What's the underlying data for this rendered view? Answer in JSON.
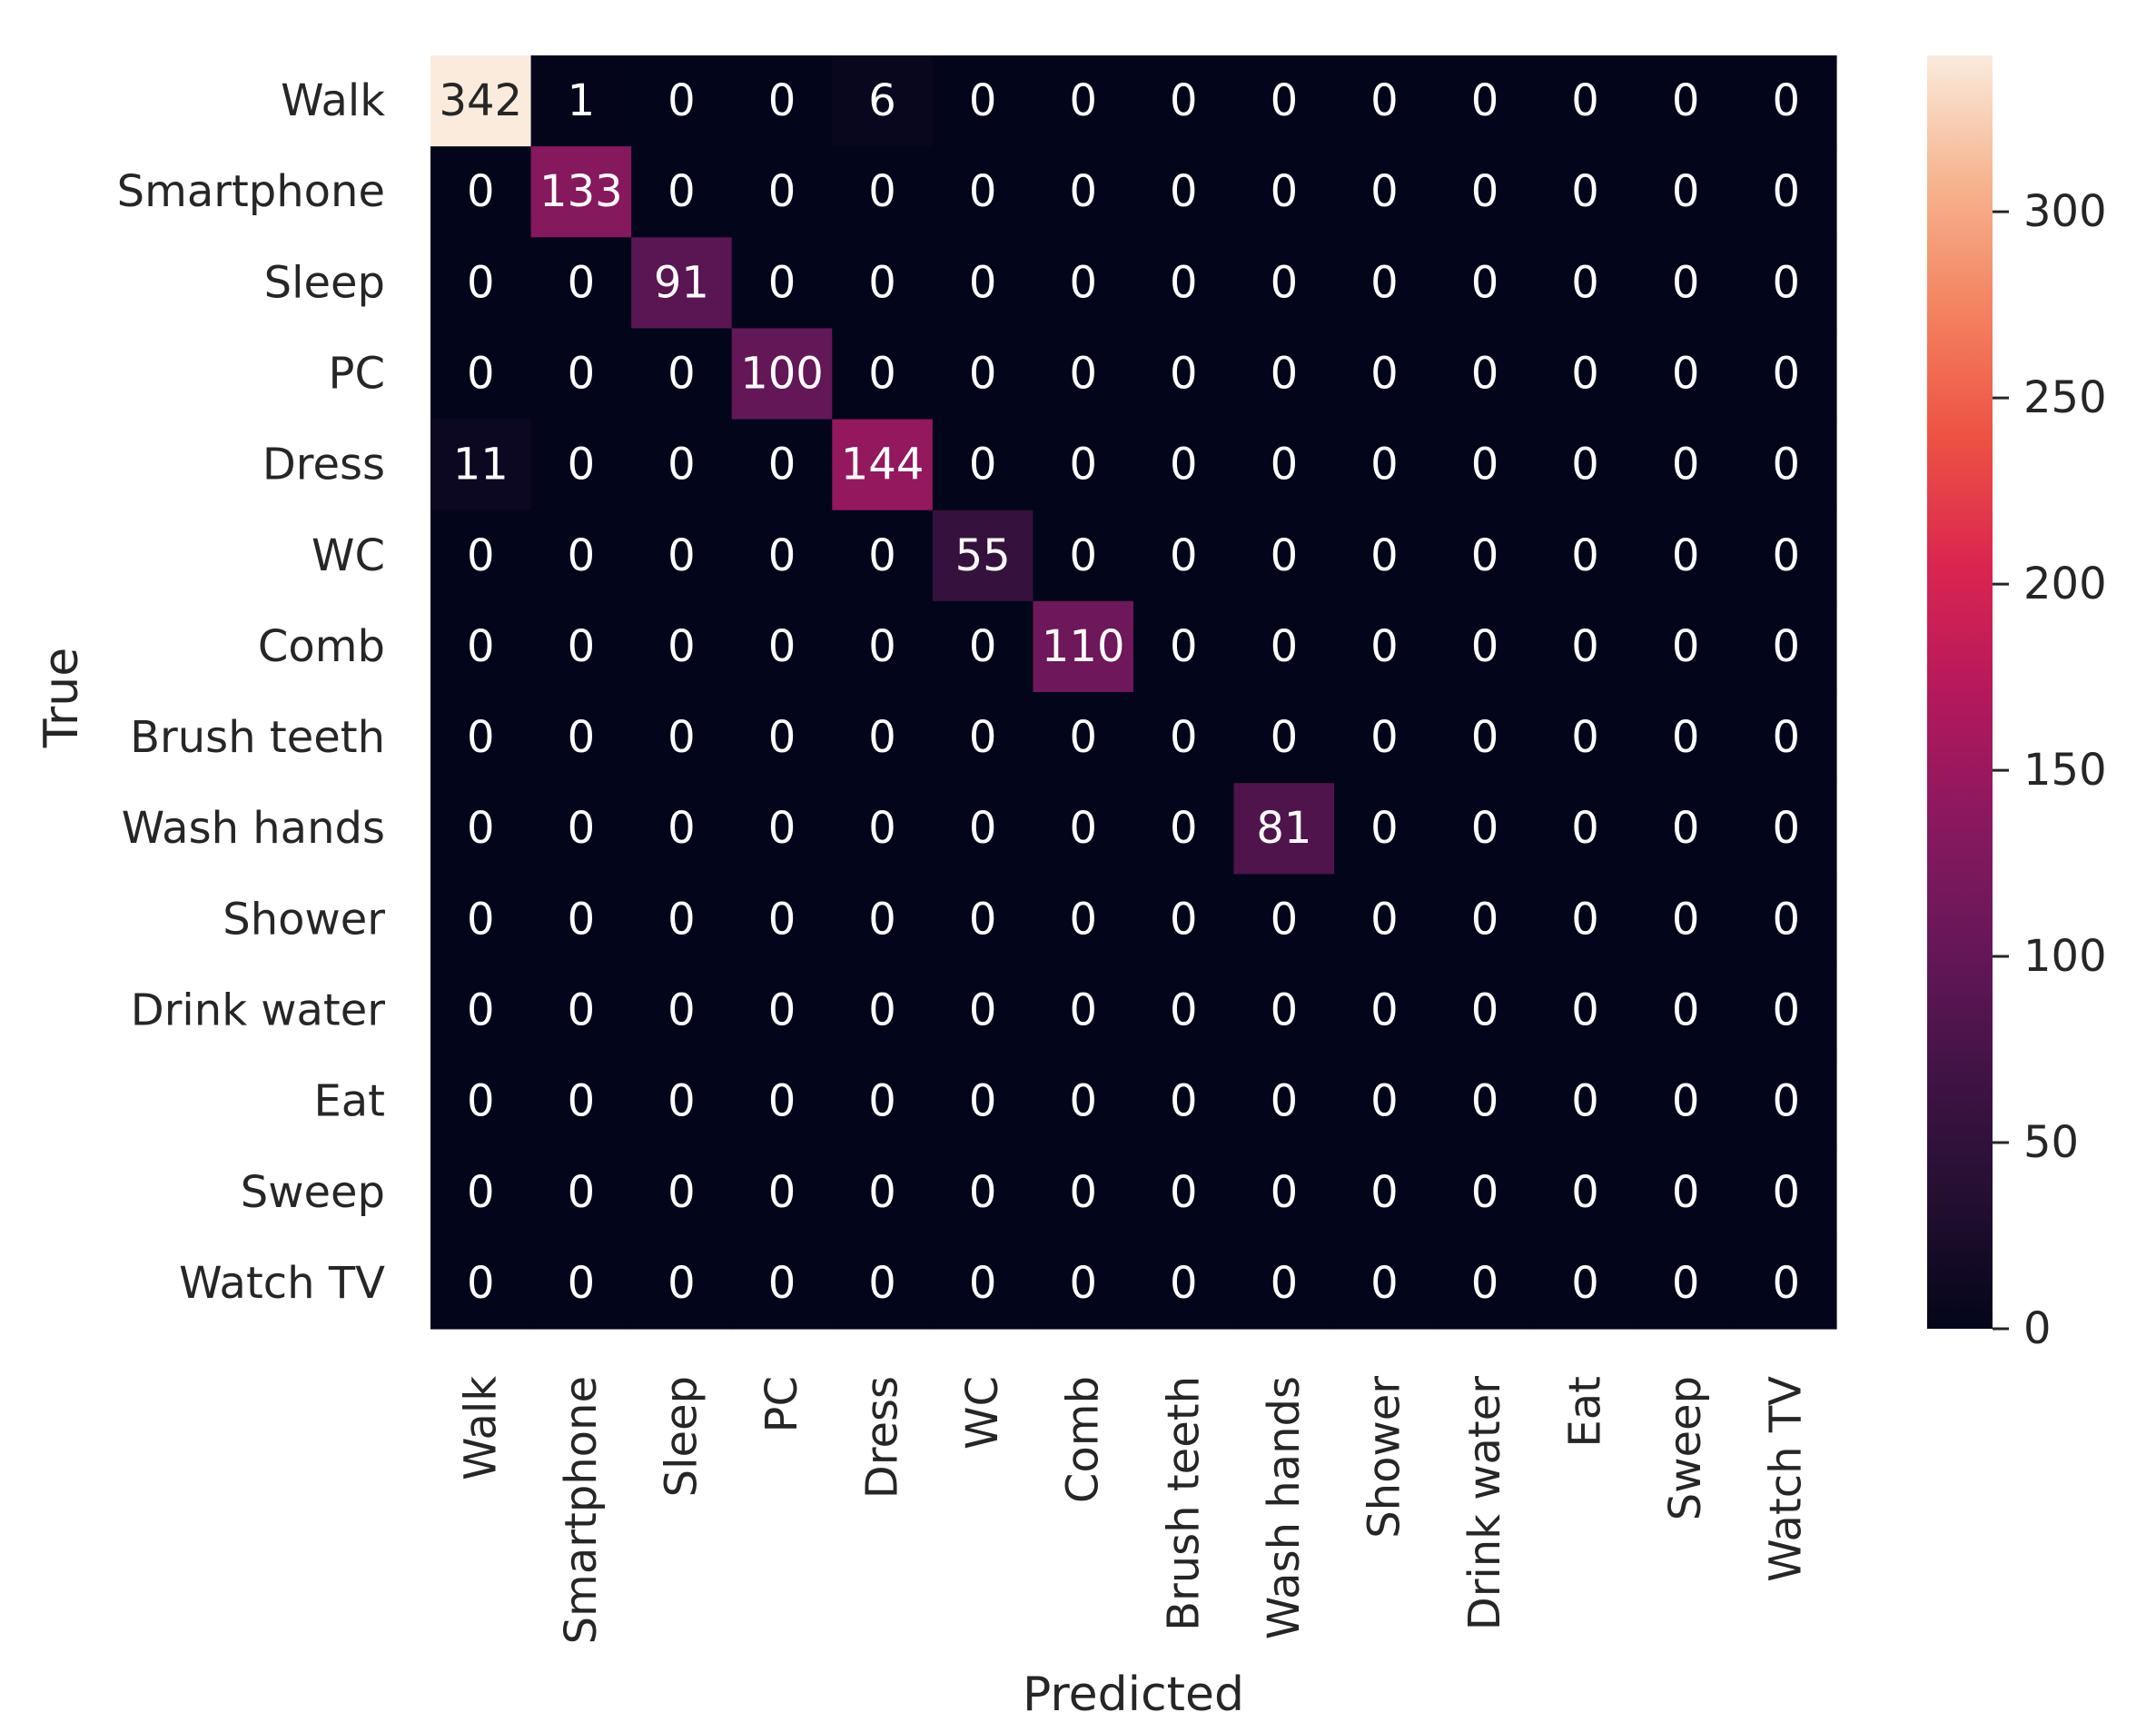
{
  "chart_data": {
    "type": "heatmap",
    "title": "",
    "xlabel": "Predicted",
    "ylabel": "True",
    "x_categories": [
      "Walk",
      "Smartphone",
      "Sleep",
      "PC",
      "Dress",
      "WC",
      "Comb",
      "Brush teeth",
      "Wash hands",
      "Shower",
      "Drink water",
      "Eat",
      "Sweep",
      "Watch TV"
    ],
    "y_categories": [
      "Walk",
      "Smartphone",
      "Sleep",
      "PC",
      "Dress",
      "WC",
      "Comb",
      "Brush teeth",
      "Wash hands",
      "Shower",
      "Drink water",
      "Eat",
      "Sweep",
      "Watch TV"
    ],
    "matrix": [
      [
        342,
        1,
        0,
        0,
        6,
        0,
        0,
        0,
        0,
        0,
        0,
        0,
        0,
        0
      ],
      [
        0,
        133,
        0,
        0,
        0,
        0,
        0,
        0,
        0,
        0,
        0,
        0,
        0,
        0
      ],
      [
        0,
        0,
        91,
        0,
        0,
        0,
        0,
        0,
        0,
        0,
        0,
        0,
        0,
        0
      ],
      [
        0,
        0,
        0,
        100,
        0,
        0,
        0,
        0,
        0,
        0,
        0,
        0,
        0,
        0
      ],
      [
        11,
        0,
        0,
        0,
        144,
        0,
        0,
        0,
        0,
        0,
        0,
        0,
        0,
        0
      ],
      [
        0,
        0,
        0,
        0,
        0,
        55,
        0,
        0,
        0,
        0,
        0,
        0,
        0,
        0
      ],
      [
        0,
        0,
        0,
        0,
        0,
        0,
        110,
        0,
        0,
        0,
        0,
        0,
        0,
        0
      ],
      [
        0,
        0,
        0,
        0,
        0,
        0,
        0,
        0,
        0,
        0,
        0,
        0,
        0,
        0
      ],
      [
        0,
        0,
        0,
        0,
        0,
        0,
        0,
        0,
        81,
        0,
        0,
        0,
        0,
        0
      ],
      [
        0,
        0,
        0,
        0,
        0,
        0,
        0,
        0,
        0,
        0,
        0,
        0,
        0,
        0
      ],
      [
        0,
        0,
        0,
        0,
        0,
        0,
        0,
        0,
        0,
        0,
        0,
        0,
        0,
        0
      ],
      [
        0,
        0,
        0,
        0,
        0,
        0,
        0,
        0,
        0,
        0,
        0,
        0,
        0,
        0
      ],
      [
        0,
        0,
        0,
        0,
        0,
        0,
        0,
        0,
        0,
        0,
        0,
        0,
        0,
        0
      ],
      [
        0,
        0,
        0,
        0,
        0,
        0,
        0,
        0,
        0,
        0,
        0,
        0,
        0,
        0
      ]
    ],
    "vmin": 0,
    "vmax": 342,
    "colormap": "rocket",
    "colorbar_ticks": [
      0,
      50,
      100,
      150,
      200,
      250,
      300
    ],
    "annotations": true
  }
}
